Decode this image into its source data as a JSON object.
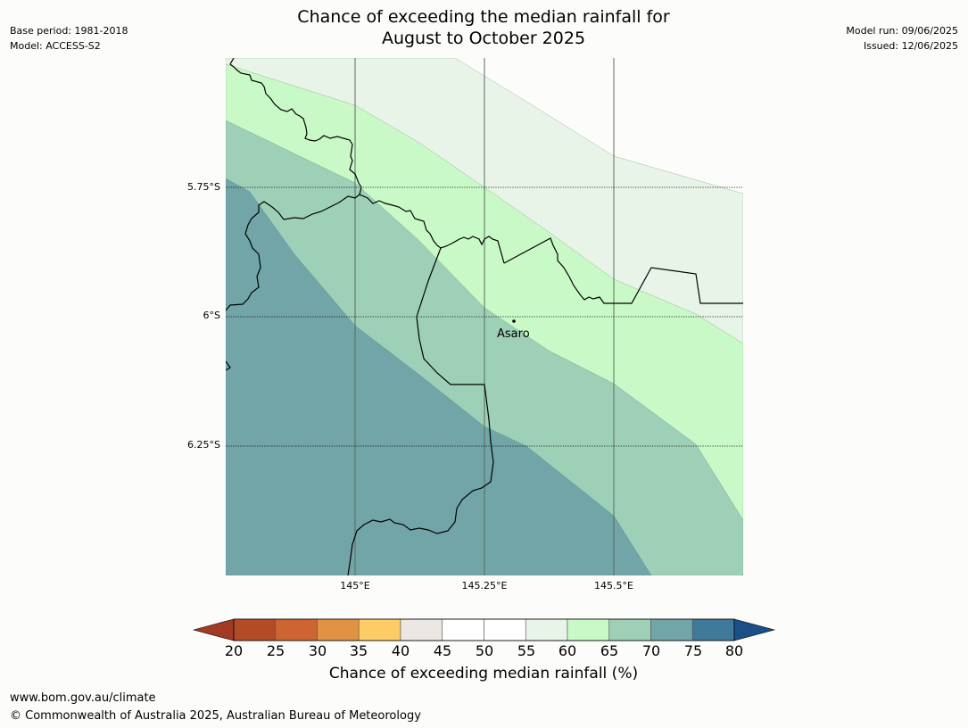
{
  "header": {
    "base_period": "Base period: 1981-2018",
    "model": "Model: ACCESS-S2",
    "title_line1": "Chance of exceeding the median rainfall for",
    "title_line2": "August to October 2025",
    "model_run": "Model run: 09/06/2025",
    "issued": "Issued: 12/06/2025"
  },
  "map": {
    "lat_labels": [
      "5.75°S",
      "6°S",
      "6.25°S"
    ],
    "lon_labels": [
      "145°E",
      "145.25°E",
      "145.5°E"
    ],
    "place": {
      "name": "Asaro"
    },
    "zones": [
      {
        "range": "55-60",
        "color": "#e9f4e9"
      },
      {
        "range": "60-65",
        "color": "#caf9c8"
      },
      {
        "range": "65-70",
        "color": "#9ed0b8"
      },
      {
        "range": "70-75",
        "color": "#71a5a8"
      }
    ]
  },
  "colorbar": {
    "ticks": [
      "20",
      "25",
      "30",
      "35",
      "40",
      "45",
      "50",
      "55",
      "60",
      "65",
      "70",
      "75",
      "80"
    ],
    "colors": [
      "#a33a24",
      "#b34c26",
      "#cd6431",
      "#e29243",
      "#fecc66",
      "#ebe8e4",
      "#ffffff",
      "#ffffff",
      "#e9f4e9",
      "#caf9c8",
      "#9ed0b8",
      "#71a5a8",
      "#3f7a9a",
      "#1a4f87"
    ],
    "label": "Chance of exceeding median rainfall (%)"
  },
  "footer": {
    "url": "www.bom.gov.au/climate",
    "copyright": "© Commonwealth of Australia 2025, Australian Bureau of Meteorology"
  }
}
